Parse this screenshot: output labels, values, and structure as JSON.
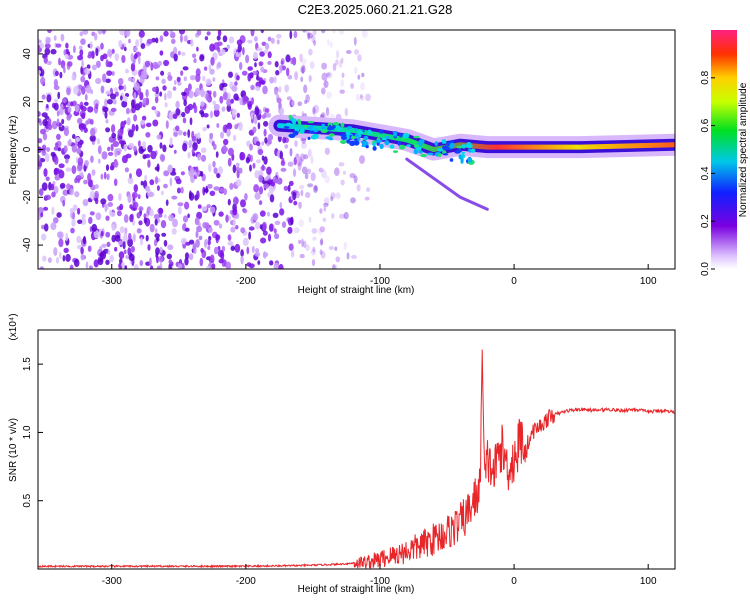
{
  "title": "C2E3.2025.060.21.21.G28",
  "colors": {
    "signal_red": "#e8262a",
    "spectrogram_purple": "#6a00d6",
    "axis": "#000000"
  },
  "chart_data": [
    {
      "type": "heatmap",
      "xlabel": "Height of straight line (km)",
      "ylabel": "Frequency (Hz)",
      "xlim": [
        -355,
        120
      ],
      "ylim": [
        -50,
        50
      ],
      "x_ticks": [
        "-300",
        "-200",
        "-100",
        "0",
        "100"
      ],
      "x_tick_values": [
        -300,
        -200,
        -100,
        0,
        100
      ],
      "y_ticks": [
        "-40",
        "-20",
        "0",
        "20",
        "40"
      ],
      "y_tick_values": [
        -40,
        -20,
        0,
        20,
        40
      ],
      "colorbar": {
        "label": "Normalized spectral amplitude",
        "range": [
          0,
          1
        ],
        "ticks": [
          "0.0",
          "0.2",
          "0.4",
          "0.6",
          "0.8"
        ],
        "tick_values": [
          0.0,
          0.2,
          0.4,
          0.6,
          0.8
        ]
      },
      "features": {
        "noise_region_x": [
          -355,
          -115
        ],
        "signal_start_x": -175,
        "ridge": {
          "x": [
            -175,
            -120,
            -80,
            -60,
            -40,
            -20,
            0,
            50,
            120
          ],
          "freq": [
            10,
            8,
            4,
            0,
            2,
            1,
            1,
            1,
            2
          ]
        },
        "branch": {
          "x": [
            -80,
            -40,
            -20
          ],
          "freq": [
            -4,
            -20,
            -25
          ]
        }
      }
    },
    {
      "type": "line",
      "xlabel": "Height of straight line (km)",
      "ylabel": "SNR (10 * v/v)",
      "y_multiplier": "(x10⁴)",
      "xlim": [
        -355,
        120
      ],
      "ylim": [
        0,
        1.75
      ],
      "x_ticks": [
        "-300",
        "-200",
        "-100",
        "0",
        "100"
      ],
      "x_tick_values": [
        -300,
        -200,
        -100,
        0,
        100
      ],
      "y_ticks": [
        "0.5",
        "1.0",
        "1.5"
      ],
      "y_tick_values": [
        0.5,
        1.0,
        1.5
      ],
      "series": [
        {
          "color": "#e8262a",
          "x": [
            -355,
            -300,
            -250,
            -200,
            -160,
            -130,
            -110,
            -100,
            -90,
            -80,
            -70,
            -60,
            -50,
            -45,
            -40,
            -35,
            -30,
            -25,
            -24,
            -22,
            -20,
            -15,
            -10,
            -5,
            0,
            5,
            10,
            15,
            20,
            25,
            30,
            40,
            50,
            60,
            70,
            80,
            90,
            100,
            110,
            120
          ],
          "y": [
            0.02,
            0.02,
            0.02,
            0.02,
            0.025,
            0.035,
            0.05,
            0.07,
            0.1,
            0.13,
            0.17,
            0.22,
            0.27,
            0.3,
            0.34,
            0.4,
            0.5,
            0.6,
            1.72,
            0.6,
            0.8,
            0.7,
            0.9,
            0.75,
            0.8,
            0.95,
            0.92,
            1.02,
            1.05,
            1.1,
            1.13,
            1.16,
            1.17,
            1.16,
            1.17,
            1.16,
            1.17,
            1.15,
            1.16,
            1.15
          ]
        }
      ]
    }
  ]
}
